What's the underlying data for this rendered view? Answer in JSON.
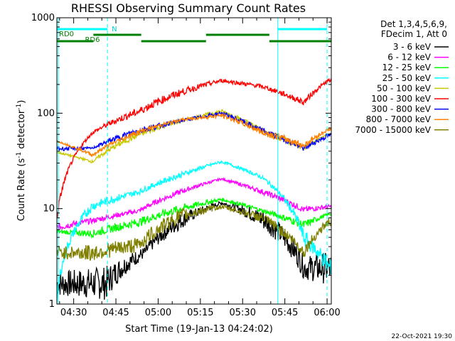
{
  "chart_data": {
    "type": "line",
    "title": "RHESSI Observing Summary Count Rates",
    "xlabel": "Start Time (19-Jan-13 04:24:02)",
    "ylabel_main": "Count Rate (s",
    "ylabel_sup1": "-1",
    "ylabel_mid": " detector",
    "ylabel_sup2": "-1",
    "ylabel_end": ")",
    "x_range": [
      "04:24:02",
      "06:01:30"
    ],
    "y_range": [
      1,
      1000
    ],
    "y_scale": "log",
    "x_ticks": [
      "04:30",
      "04:45",
      "05:00",
      "05:15",
      "05:30",
      "05:45",
      "06:00"
    ],
    "y_ticks": [
      "1",
      "10",
      "100",
      "1000"
    ],
    "grid": false,
    "legend_position": "right",
    "legend_header": [
      "Det 1,3,4,5,6,9,",
      "FDecim 1, Att 0"
    ],
    "series": [
      {
        "name": "3 - 6 keV",
        "color": "#000000",
        "values": [
          [
            0.6,
            [
              1.2,
              2.2
            ]
          ],
          [
            18,
            [
              1.1,
              2.5
            ]
          ],
          [
            32,
            [
              3,
              4
            ]
          ],
          [
            45,
            [
              6,
              9
            ]
          ],
          [
            60,
            [
              11,
              12
            ]
          ],
          [
            75,
            [
              6,
              10
            ]
          ],
          [
            90,
            [
              1.8,
              3.2
            ]
          ],
          [
            99,
            [
              1.6,
              3.5
            ]
          ]
        ]
      },
      {
        "name": "6 - 12 keV",
        "color": "#ff00ff",
        "values": [
          [
            0,
            [
              5.8,
              7
            ]
          ],
          [
            13,
            [
              7,
              8
            ]
          ],
          [
            30,
            [
              9,
              10
            ]
          ],
          [
            45,
            [
              14,
              16
            ]
          ],
          [
            60,
            [
              20,
              21
            ]
          ],
          [
            75,
            [
              14,
              16
            ]
          ],
          [
            90,
            [
              9,
              10.5
            ]
          ],
          [
            99,
            [
              10,
              11
            ]
          ]
        ]
      },
      {
        "name": "12 - 25 keV",
        "color": "#00ff00",
        "values": [
          [
            0,
            [
              5.5,
              6
            ]
          ],
          [
            13,
            [
              5,
              6
            ]
          ],
          [
            30,
            [
              6.5,
              8
            ]
          ],
          [
            45,
            [
              9,
              11
            ]
          ],
          [
            60,
            [
              12,
              13
            ]
          ],
          [
            75,
            [
              9,
              10
            ]
          ],
          [
            90,
            [
              6,
              7.5
            ]
          ],
          [
            99,
            [
              8.5,
              9
            ]
          ]
        ]
      },
      {
        "name": "25 - 50 keV",
        "color": "#00ffff",
        "values": [
          [
            0,
            [
              1,
              1.3
            ]
          ],
          [
            13,
            [
              9.5,
              12
            ]
          ],
          [
            30,
            [
              14,
              16
            ]
          ],
          [
            45,
            [
              21,
              24
            ]
          ],
          [
            60,
            [
              30,
              32
            ]
          ],
          [
            75,
            [
              20,
              22
            ]
          ],
          [
            90,
            [
              4,
              6
            ]
          ],
          [
            99,
            [
              2,
              3
            ]
          ]
        ]
      },
      {
        "name": "50 - 100 keV",
        "color": "#c8c800",
        "values": [
          [
            0,
            [
              38,
              40
            ]
          ],
          [
            13,
            [
              30,
              32
            ]
          ],
          [
            30,
            [
              55,
              65
            ]
          ],
          [
            45,
            [
              80,
              85
            ]
          ],
          [
            60,
            [
              100,
              110
            ]
          ],
          [
            75,
            [
              60,
              70
            ]
          ],
          [
            90,
            [
              40,
              45
            ]
          ],
          [
            99,
            [
              60,
              62
            ]
          ]
        ]
      },
      {
        "name": "100 - 300 keV",
        "color": "#ff0000",
        "values": [
          [
            0,
            [
              7,
              9
            ]
          ],
          [
            13,
            [
              60,
              65
            ]
          ],
          [
            30,
            [
              95,
              115
            ]
          ],
          [
            45,
            [
              150,
              180
            ]
          ],
          [
            60,
            [
              210,
              230
            ]
          ],
          [
            75,
            [
              180,
              200
            ]
          ],
          [
            90,
            [
              120,
              140
            ]
          ],
          [
            99,
            [
              210,
              230
            ]
          ]
        ]
      },
      {
        "name": "300 - 800 keV",
        "color": "#0000ff",
        "values": [
          [
            0,
            [
              40,
              45
            ]
          ],
          [
            13,
            [
              42,
              44
            ]
          ],
          [
            30,
            [
              60,
              72
            ]
          ],
          [
            45,
            [
              80,
              86
            ]
          ],
          [
            60,
            [
              95,
              105
            ]
          ],
          [
            75,
            [
              60,
              70
            ]
          ],
          [
            90,
            [
              40,
              45
            ]
          ],
          [
            99,
            [
              55,
              62
            ]
          ]
        ]
      },
      {
        "name": "800 - 7000 keV",
        "color": "#ff8000",
        "values": [
          [
            0,
            [
              50,
              52
            ]
          ],
          [
            13,
            [
              35,
              38
            ]
          ],
          [
            30,
            [
              60,
              68
            ]
          ],
          [
            45,
            [
              82,
              88
            ]
          ],
          [
            60,
            [
              90,
              100
            ]
          ],
          [
            75,
            [
              58,
              68
            ]
          ],
          [
            90,
            [
              42,
              50
            ]
          ],
          [
            99,
            [
              65,
              70
            ]
          ]
        ]
      },
      {
        "name": "7000 - 15000 keV",
        "color": "#808000",
        "values": [
          [
            0,
            [
              3,
              4
            ]
          ],
          [
            13,
            [
              2.8,
              4.2
            ]
          ],
          [
            30,
            [
              3.5,
              5
            ]
          ],
          [
            45,
            [
              7,
              10
            ]
          ],
          [
            60,
            [
              10,
              11
            ]
          ],
          [
            75,
            [
              7,
              9
            ]
          ],
          [
            90,
            [
              3,
              4
            ]
          ],
          [
            99,
            [
              6.5,
              8
            ]
          ]
        ]
      }
    ],
    "annotations": {
      "attenuator_label": "N",
      "rd0_label": "RD0",
      "rd6_label": "RD6"
    }
  },
  "footer": {
    "timestamp": "22-Oct-2021 19:30"
  }
}
